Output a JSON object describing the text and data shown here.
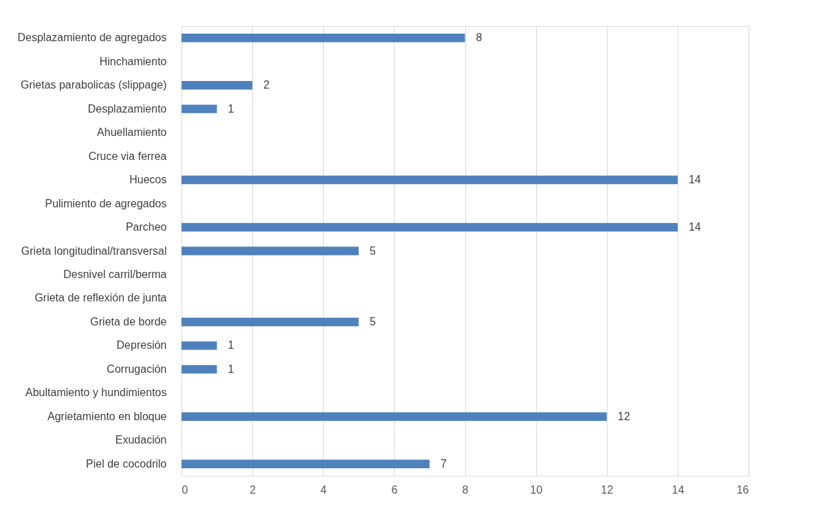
{
  "chart_data": {
    "type": "bar",
    "orientation": "horizontal",
    "categories": [
      "Desplazamiento de agregados",
      "Hinchamiento",
      "Grietas parabolicas (slippage)",
      "Desplazamiento",
      "Ahuellamiento",
      "Cruce via ferrea",
      "Huecos",
      "Pulimiento de agregados",
      "Parcheo",
      "Grieta longitudinal/transversal",
      "Desnivel carril/berma",
      "Grieta de reflexión de junta",
      "Grieta de borde",
      "Depresión",
      "Corrugación",
      "Abultamiento y hundimientos",
      "Agrietamiento en bloque",
      "Exudación",
      "Piel de cocodrilo"
    ],
    "values": [
      8,
      null,
      2,
      1,
      null,
      null,
      14,
      null,
      14,
      5,
      null,
      null,
      5,
      1,
      1,
      null,
      12,
      null,
      7
    ],
    "color": "#4f81bd",
    "xlim": [
      0,
      16
    ],
    "xticks": [
      0,
      2,
      4,
      6,
      8,
      10,
      12,
      14,
      16
    ],
    "grid": "x",
    "data_labels": true
  }
}
